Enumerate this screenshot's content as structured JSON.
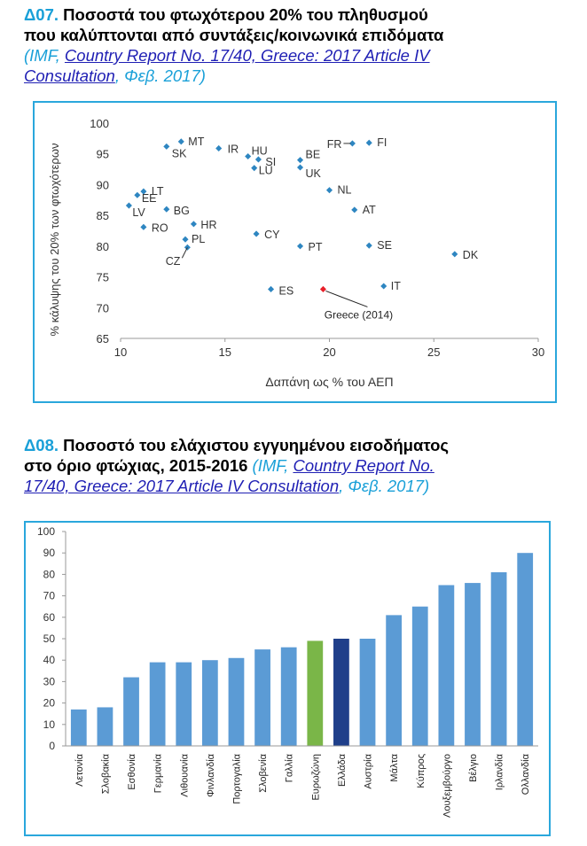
{
  "section1": {
    "code": "Δ07.",
    "title_line1": "Ποσοστά του φτωχότερου 20% του πληθυσμού",
    "title_line2": "που καλύπτονται από συντάξεις/κοινωνικά επιδόματα",
    "source_open": "(IMF, ",
    "source_link1": "Country Report No. 17/40, Greece: 2017 Article IV",
    "source_link2": "Consultation",
    "source_close": ", Φεβ. 2017)"
  },
  "section2": {
    "code": "Δ08.",
    "title_line1": "Ποσοστό του ελάχιστου εγγυημένου εισοδήματος",
    "title_line2": "στο όριο φτώχιας, 2015-2016",
    "source_open": " (IMF, ",
    "source_link1": "Country Report No.",
    "source_link2": "17/40, Greece: 2017 Article IV Consultation",
    "source_close": ", Φεβ. 2017)"
  },
  "chart_data": [
    {
      "type": "scatter",
      "xlabel": "Δαπάνη ως % του ΑΕΠ",
      "ylabel": "% κάλυψης του 20% των φτωχότερων",
      "xlim": [
        10,
        30
      ],
      "ylim": [
        65,
        100
      ],
      "xticks": [
        10,
        15,
        20,
        25,
        30
      ],
      "yticks": [
        65,
        70,
        75,
        80,
        85,
        90,
        95,
        100
      ],
      "grid": false,
      "point_color": "#2e86c1",
      "highlight_color": "#e8202a",
      "points": [
        {
          "label": "MT",
          "x": 12.9,
          "y": 97.0
        },
        {
          "label": "SK",
          "x": 12.2,
          "y": 96.2
        },
        {
          "label": "IR",
          "x": 14.7,
          "y": 95.9
        },
        {
          "label": "HU",
          "x": 16.1,
          "y": 94.6
        },
        {
          "label": "SI",
          "x": 16.6,
          "y": 94.1
        },
        {
          "label": "LU",
          "x": 16.4,
          "y": 92.7
        },
        {
          "label": "BE",
          "x": 18.6,
          "y": 94.0
        },
        {
          "label": "UK",
          "x": 18.6,
          "y": 92.8
        },
        {
          "label": "FR",
          "x": 21.1,
          "y": 96.7
        },
        {
          "label": "FI",
          "x": 21.9,
          "y": 96.8
        },
        {
          "label": "LT",
          "x": 11.1,
          "y": 88.9
        },
        {
          "label": "EE",
          "x": 10.8,
          "y": 88.3
        },
        {
          "label": "LV",
          "x": 10.4,
          "y": 86.6
        },
        {
          "label": "BG",
          "x": 12.2,
          "y": 86.0
        },
        {
          "label": "HR",
          "x": 13.5,
          "y": 83.6
        },
        {
          "label": "RO",
          "x": 11.1,
          "y": 83.1
        },
        {
          "label": "PL",
          "x": 13.1,
          "y": 81.1
        },
        {
          "label": "CZ",
          "x": 13.2,
          "y": 79.8
        },
        {
          "label": "NL",
          "x": 20.0,
          "y": 89.1
        },
        {
          "label": "AT",
          "x": 21.2,
          "y": 85.9
        },
        {
          "label": "CY",
          "x": 16.5,
          "y": 82.0
        },
        {
          "label": "PT",
          "x": 18.6,
          "y": 80.0
        },
        {
          "label": "SE",
          "x": 21.9,
          "y": 80.1
        },
        {
          "label": "DK",
          "x": 26.0,
          "y": 78.7
        },
        {
          "label": "ES",
          "x": 17.2,
          "y": 73.0
        },
        {
          "label": "IT",
          "x": 22.6,
          "y": 73.5
        },
        {
          "label": "Greece (2014)",
          "x": 19.7,
          "y": 73.0,
          "highlight": true
        }
      ]
    },
    {
      "type": "bar",
      "ylim": [
        0,
        100
      ],
      "yticks": [
        0,
        10,
        20,
        30,
        40,
        50,
        60,
        70,
        80,
        90,
        100
      ],
      "grid": false,
      "colors": {
        "default": "#5b9bd5",
        "Ευρωζώνη": "#7ab648",
        "Ελλάδα": "#1f3f8a"
      },
      "categories": [
        "Λετονία",
        "Σλοβακία",
        "Εσθονία",
        "Γερμανία",
        "Λιθουανία",
        "Φινλανδία",
        "Πορτογαλία",
        "Σλοβενία",
        "Γαλλία",
        "Ευρωζώνη",
        "Ελλάδα",
        "Αυστρία",
        "Μάλτα",
        "Κύπρος",
        "Λουξεμβούργο",
        "Βέλγιο",
        "Ιρλανδία",
        "Ολλανδία"
      ],
      "values": [
        17,
        18,
        32,
        39,
        39,
        40,
        41,
        45,
        46,
        49,
        50,
        50,
        61,
        65,
        75,
        76,
        81,
        90
      ]
    }
  ]
}
